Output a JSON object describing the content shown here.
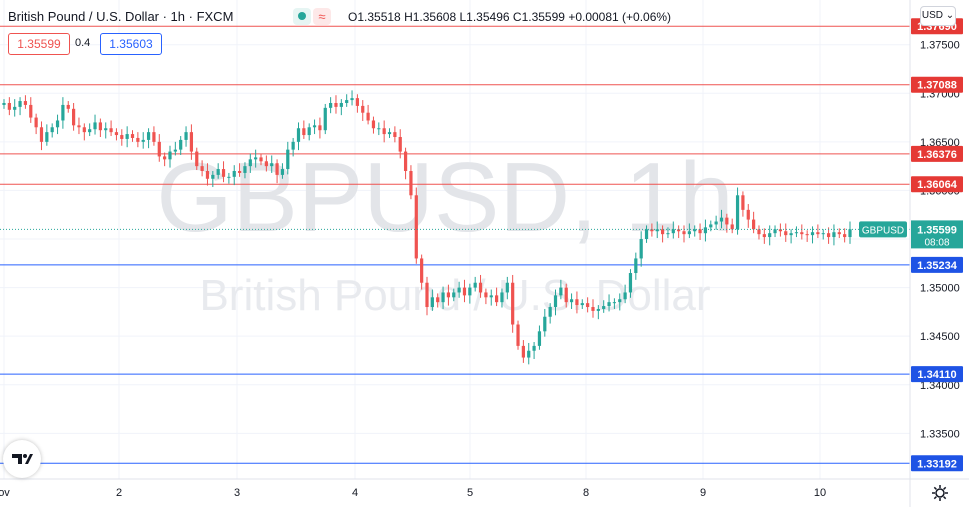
{
  "header": {
    "symbol_title": "British Pound / U.S. Dollar · 1h · FXCM",
    "ohlc": {
      "o_label": "O",
      "o": "1.35518",
      "h_label": "H",
      "h": "1.35608",
      "l_label": "L",
      "l": "1.35496",
      "c_label": "C",
      "c": "1.35599",
      "change": "+0.00081 (+0.06%)"
    },
    "bid": "1.35599",
    "spread": "0.4",
    "ask": "1.35603",
    "currency": "USD",
    "icons": [
      "indicator-dot-icon",
      "wave-icon"
    ]
  },
  "watermark": {
    "ticker": "GBPUSD, 1h",
    "name": "British Pound / U.S. Dollar"
  },
  "colors": {
    "up": "#26a69a",
    "down": "#ef5350",
    "resistance": "#ef5350",
    "support": "#2962ff",
    "label_red": "#e53935",
    "label_blue": "#1e53e5",
    "last_price": "#26a69a"
  },
  "chart_data": {
    "type": "candlestick",
    "x_tick_labels": [
      "ov",
      "2",
      "3",
      "4",
      "5",
      "8",
      "9",
      "10"
    ],
    "y_tick_labels": [
      "1.37500",
      "1.37000",
      "1.36500",
      "1.36000",
      "1.35500",
      "1.35000",
      "1.34500",
      "1.34000",
      "1.33500"
    ],
    "ylim": [
      1.3303,
      1.3796
    ],
    "resistance_levels": [
      "1.37690",
      "1.37088",
      "1.36376",
      "1.36064"
    ],
    "support_levels": [
      "1.35234",
      "1.34110",
      "1.33192"
    ],
    "last_price": {
      "symbol": "GBPUSD",
      "value": "1.35599",
      "countdown": "08:08"
    },
    "grid": true,
    "series_close": [
      1.369,
      1.3683,
      1.3686,
      1.3692,
      1.3688,
      1.3675,
      1.3665,
      1.365,
      1.366,
      1.3665,
      1.3672,
      1.3688,
      1.3684,
      1.3667,
      1.3665,
      1.366,
      1.3663,
      1.367,
      1.3662,
      1.3664,
      1.366,
      1.3657,
      1.3653,
      1.3658,
      1.3654,
      1.365,
      1.3652,
      1.366,
      1.365,
      1.3635,
      1.3632,
      1.364,
      1.3642,
      1.3652,
      1.366,
      1.364,
      1.3625,
      1.362,
      1.3612,
      1.3616,
      1.3622,
      1.3614,
      1.3614,
      1.362,
      1.3618,
      1.3625,
      1.3632,
      1.3634,
      1.363,
      1.3625,
      1.3628,
      1.3616,
      1.3622,
      1.3642,
      1.365,
      1.3664,
      1.3657,
      1.3665,
      1.3667,
      1.3662,
      1.3685,
      1.369,
      1.3686,
      1.369,
      1.3693,
      1.3695,
      1.3687,
      1.368,
      1.3672,
      1.3664,
      1.3664,
      1.3658,
      1.366,
      1.3655,
      1.364,
      1.362,
      1.3595,
      1.353,
      1.3505,
      1.348,
      1.349,
      1.3485,
      1.3495,
      1.349,
      1.3495,
      1.35,
      1.3492,
      1.35,
      1.3505,
      1.3495,
      1.349,
      1.3492,
      1.3485,
      1.3495,
      1.3505,
      1.3462,
      1.344,
      1.3428,
      1.3435,
      1.344,
      1.3455,
      1.347,
      1.348,
      1.3492,
      1.35,
      1.3485,
      1.3488,
      1.3482,
      1.3484,
      1.348,
      1.3476,
      1.3478,
      1.3481,
      1.3485,
      1.3485,
      1.3488,
      1.3495,
      1.3515,
      1.353,
      1.355,
      1.356,
      1.3558,
      1.356,
      1.3555,
      1.3556,
      1.356,
      1.3558,
      1.3555,
      1.3558,
      1.356,
      1.3556,
      1.3562,
      1.3565,
      1.3568,
      1.3572,
      1.3565,
      1.356,
      1.3595,
      1.358,
      1.357,
      1.356,
      1.3555,
      1.3552,
      1.3556,
      1.356,
      1.3558,
      1.3554,
      1.3556,
      1.3557,
      1.3555,
      1.3554,
      1.3557,
      1.3555,
      1.3556,
      1.3552,
      1.3557,
      1.3555,
      1.3552,
      1.356
    ],
    "open_first": 1.3688
  }
}
